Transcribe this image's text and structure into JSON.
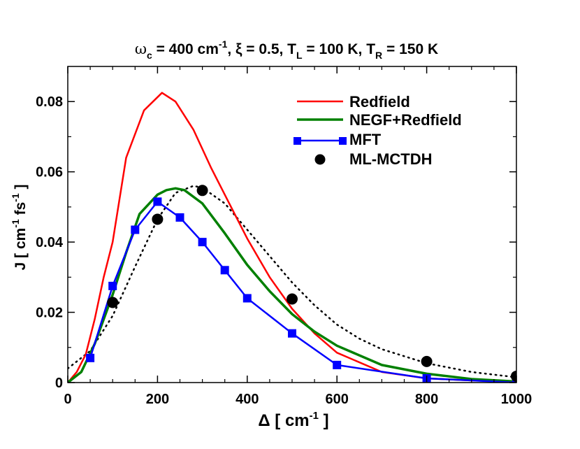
{
  "chart_data": {
    "type": "line",
    "title": {
      "omega": "ω",
      "omega_sub": "c",
      "part1": " = 400 cm",
      "part1_sup": "-1",
      "part2": ", ξ = 0.5, T",
      "part2_sub": "L",
      "part3": " = 100 K, T",
      "part3_sub": "R",
      "part4": " = 150 K"
    },
    "xlabel": {
      "main": "Δ  [ cm",
      "sup": "-1",
      "end": " ]"
    },
    "ylabel": {
      "main": "J [ cm",
      "sup1": "-1",
      "mid": " fs",
      "sup2": "-1",
      "end": " ]"
    },
    "xlim": [
      0,
      1000
    ],
    "ylim": [
      0,
      0.09
    ],
    "xticks": [
      0,
      200,
      400,
      600,
      800,
      1000
    ],
    "xtick_labels": [
      "0",
      "200",
      "400",
      "600",
      "800",
      "1000"
    ],
    "yticks": [
      0,
      0.02,
      0.04,
      0.06,
      0.08
    ],
    "ytick_labels": [
      "0",
      "0.02",
      "0.04",
      "0.06",
      "0.08"
    ],
    "legend_position": "top-right",
    "series": [
      {
        "name": "Redfield",
        "color": "#ff0000",
        "style": "solid",
        "marker": "none",
        "x": [
          0,
          20,
          40,
          60,
          80,
          100,
          130,
          170,
          210,
          240,
          280,
          320,
          360,
          400,
          450,
          500,
          550,
          600,
          700,
          800,
          900,
          1000
        ],
        "y": [
          0.0,
          0.003,
          0.008,
          0.018,
          0.03,
          0.04,
          0.064,
          0.0775,
          0.0825,
          0.08,
          0.072,
          0.061,
          0.051,
          0.041,
          0.03,
          0.021,
          0.014,
          0.0085,
          0.003,
          0.0012,
          0.0006,
          0.0003
        ]
      },
      {
        "name": "NEGF+Redfield",
        "color": "#008000",
        "style": "solid",
        "marker": "none",
        "x": [
          0,
          30,
          60,
          100,
          130,
          160,
          200,
          220,
          240,
          260,
          300,
          350,
          400,
          450,
          500,
          550,
          600,
          700,
          800,
          900,
          1000
        ],
        "y": [
          0.0,
          0.003,
          0.011,
          0.025,
          0.037,
          0.048,
          0.0535,
          0.0548,
          0.0553,
          0.0548,
          0.051,
          0.0425,
          0.0335,
          0.026,
          0.0195,
          0.0145,
          0.0105,
          0.005,
          0.0025,
          0.001,
          0.0003
        ]
      },
      {
        "name": "MFT",
        "color": "#0000ff",
        "style": "solid",
        "marker": "square",
        "x": [
          50,
          100,
          150,
          200,
          250,
          300,
          350,
          400,
          500,
          600,
          800,
          1000
        ],
        "y": [
          0.007,
          0.0275,
          0.0435,
          0.0515,
          0.047,
          0.04,
          0.032,
          0.024,
          0.014,
          0.005,
          0.0012,
          0.0
        ]
      },
      {
        "name": "ML-MCTDH",
        "color": "#000000",
        "style": "none",
        "marker": "circle",
        "x": [
          100,
          200,
          300,
          500,
          800,
          1000
        ],
        "y": [
          0.0228,
          0.0465,
          0.0547,
          0.0238,
          0.006,
          0.0018
        ]
      },
      {
        "name": "ML-MCTDH fit",
        "color": "#000000",
        "style": "dotted",
        "marker": "none",
        "legend": false,
        "x": [
          0,
          50,
          100,
          150,
          200,
          240,
          280,
          300,
          350,
          400,
          450,
          500,
          550,
          600,
          650,
          700,
          800,
          900,
          1000
        ],
        "y": [
          0.004,
          0.009,
          0.019,
          0.033,
          0.0465,
          0.054,
          0.056,
          0.0555,
          0.051,
          0.0435,
          0.036,
          0.0285,
          0.022,
          0.0165,
          0.0125,
          0.0095,
          0.0055,
          0.003,
          0.0015
        ]
      }
    ]
  }
}
